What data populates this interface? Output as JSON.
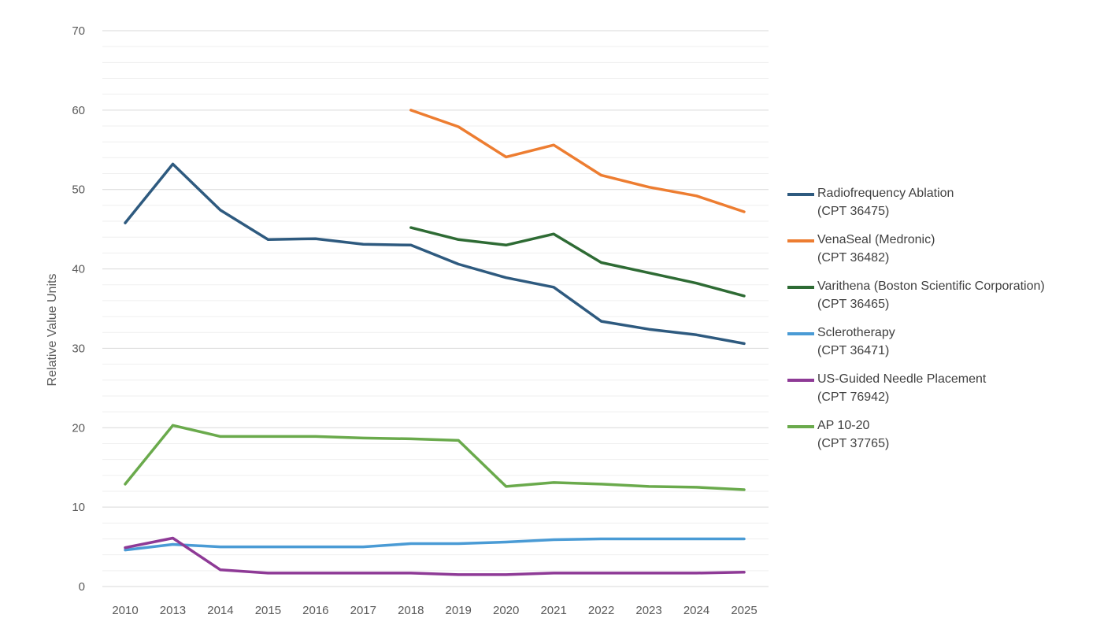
{
  "chart_data": {
    "type": "line",
    "title": "",
    "xlabel": "",
    "ylabel": "Relative Value Units",
    "ylim": [
      0,
      70
    ],
    "yticks": [
      "0",
      "10",
      "20",
      "30",
      "40",
      "50",
      "60",
      "70"
    ],
    "categories": [
      "2010",
      "2013",
      "2014",
      "2015",
      "2016",
      "2017",
      "2018",
      "2019",
      "2020",
      "2021",
      "2022",
      "2023",
      "2024",
      "2025"
    ],
    "grid": "horizontal major and minor",
    "legend_position": "right",
    "series": [
      {
        "name": "Radiofrequency Ablation",
        "code": "(CPT 36475)",
        "color": "#2E5A7F",
        "values": [
          45.8,
          53.2,
          47.4,
          43.7,
          43.8,
          43.1,
          43.0,
          40.6,
          38.9,
          37.7,
          33.4,
          32.4,
          31.7,
          30.6
        ]
      },
      {
        "name": "VenaSeal (Medronic)",
        "code": "(CPT 36482)",
        "color": "#ED7D31",
        "values": [
          null,
          null,
          null,
          null,
          null,
          null,
          60.0,
          57.9,
          54.1,
          55.6,
          51.8,
          50.3,
          49.2,
          47.2
        ]
      },
      {
        "name": "Varithena (Boston Scientific Corporation)",
        "code": "(CPT 36465)",
        "color": "#2E6B34",
        "values": [
          null,
          null,
          null,
          null,
          null,
          null,
          45.2,
          43.7,
          43.0,
          44.4,
          40.8,
          39.5,
          38.2,
          36.6
        ]
      },
      {
        "name": "Sclerotherapy",
        "code": "(CPT 36471)",
        "color": "#4A9BD5",
        "values": [
          4.6,
          5.3,
          5.0,
          5.0,
          5.0,
          5.0,
          5.4,
          5.4,
          5.6,
          5.9,
          6.0,
          6.0,
          6.0,
          6.0
        ]
      },
      {
        "name": "US-Guided Needle Placement",
        "code": "(CPT 76942)",
        "color": "#8E3A96",
        "values": [
          4.9,
          6.1,
          2.1,
          1.7,
          1.7,
          1.7,
          1.7,
          1.5,
          1.5,
          1.7,
          1.7,
          1.7,
          1.7,
          1.8
        ]
      },
      {
        "name": "AP 10-20",
        "code": "(CPT 37765)",
        "color": "#6AAA4C",
        "values": [
          12.9,
          20.3,
          18.9,
          18.9,
          18.9,
          18.7,
          18.6,
          18.4,
          12.6,
          13.1,
          12.9,
          12.6,
          12.5,
          12.2
        ]
      }
    ]
  }
}
